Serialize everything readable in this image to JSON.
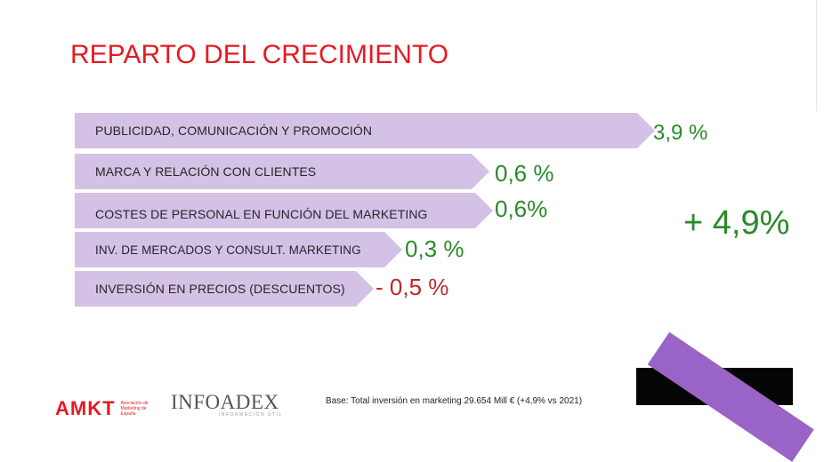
{
  "slide": {
    "title": "REPARTO DEL CRECIMIENTO",
    "items": [
      {
        "label": "PUBLICIDAD, COMUNICACIÓN Y PROMOCIÓN",
        "value": "3,9 %"
      },
      {
        "label": "MARCA Y RELACIÓN CON CLIENTES",
        "value": "0,6 %"
      },
      {
        "label": "COSTES DE PERSONAL EN FUNCIÓN DEL MARKETING",
        "value": "0,6%"
      },
      {
        "label": "INV. DE MERCADOS Y CONSULT. MARKETING",
        "value": "0,3 %"
      },
      {
        "label": "INVERSIÓN EN PRECIOS (DESCUENTOS)",
        "value": "- 0,5 %"
      }
    ],
    "total": "+ 4,9%",
    "base_note": "Base: Total inversión en marketing 29.654 Mill € (+4,9% vs 2021)",
    "colors": {
      "title": "#e31b23",
      "arrow": "#d4c1e6",
      "positive": "#2a8a2a",
      "negative": "#c0272d",
      "accent_bar": "#9a63c7"
    }
  },
  "logos": {
    "amkt": {
      "mark": "AMKT",
      "sub": "Asociación de Marketing de España"
    },
    "infoadex": {
      "mark": "INFOADEX",
      "sub": "INFORMACIÓN ÚTIL"
    }
  }
}
